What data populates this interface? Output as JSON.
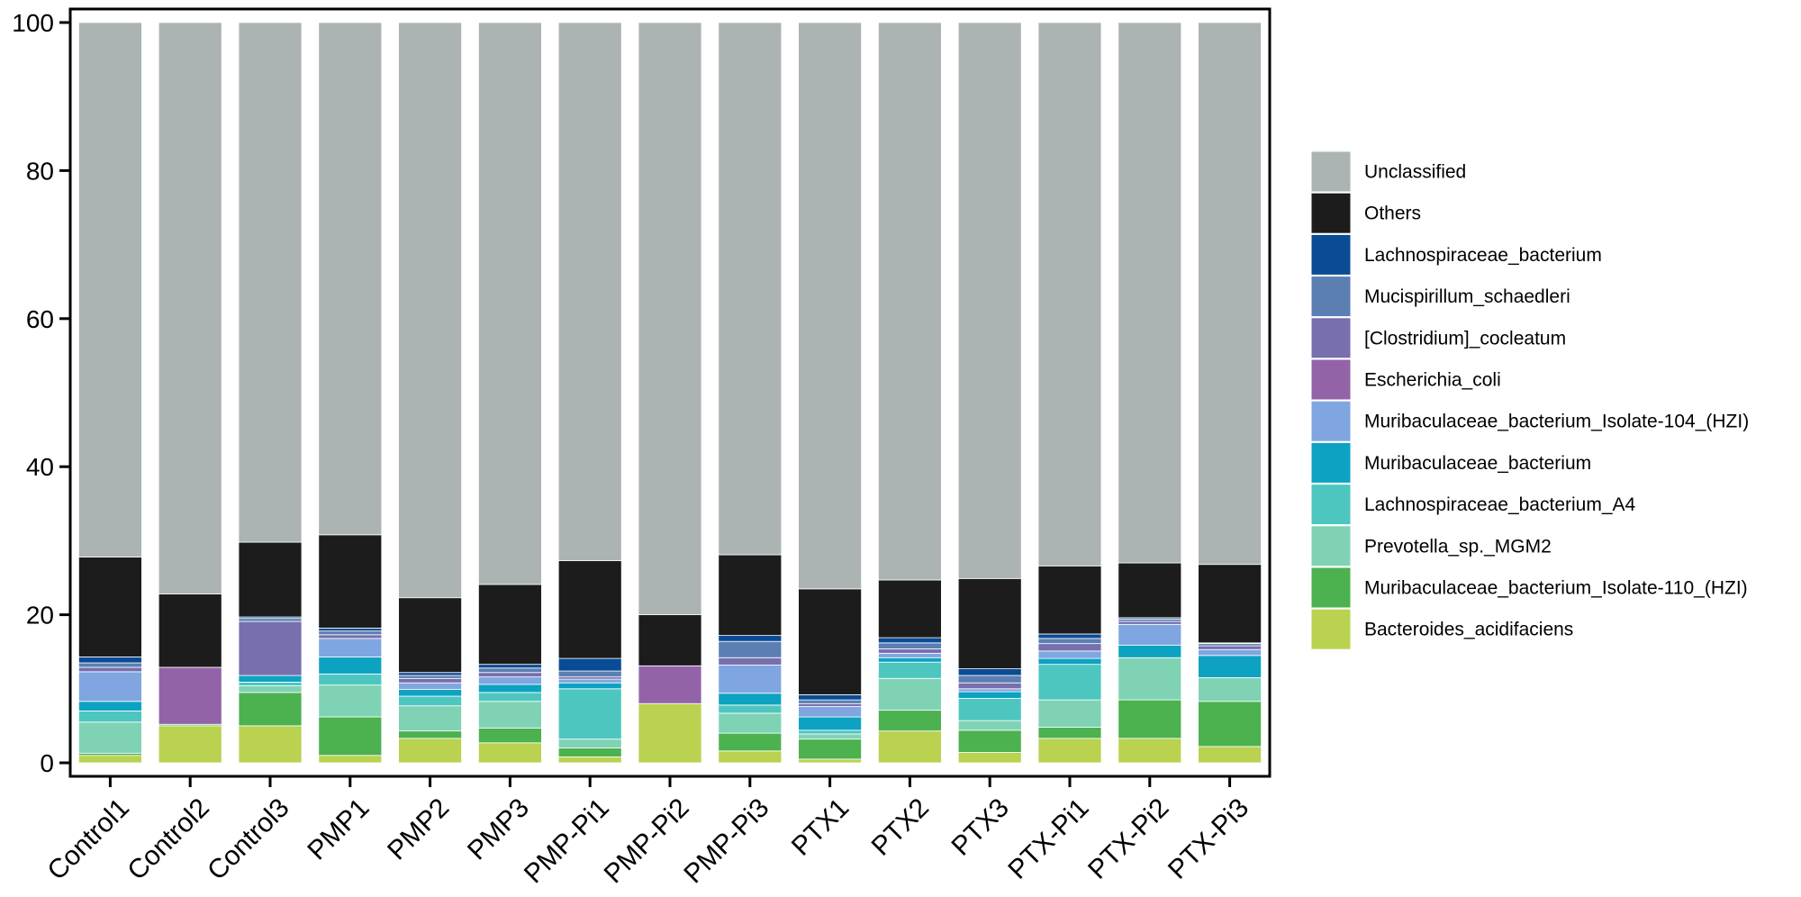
{
  "chart_data": {
    "type": "bar",
    "stacked": true,
    "title": "",
    "xlabel": "",
    "ylabel": "",
    "ylim": [
      0,
      100
    ],
    "yticks": [
      0,
      20,
      40,
      60,
      80,
      100
    ],
    "categories": [
      "Control1",
      "Control2",
      "Control3",
      "PMP1",
      "PMP2",
      "PMP3",
      "PMP-Pi1",
      "PMP-Pi2",
      "PMP-Pi3",
      "PTX1",
      "PTX2",
      "PTX3",
      "PTX-Pi1",
      "PTX-Pi2",
      "PTX-Pi3"
    ],
    "legend_position": "right",
    "legend_order": [
      "Unclassified",
      "Others",
      "Lachnospiraceae_bacterium",
      "Mucispirillum_schaedleri",
      "[Clostridium]_cocleatum",
      "Escherichia_coli",
      "Muribaculaceae_bacterium_Isolate-104_(HZI)",
      "Muribaculaceae_bacterium",
      "Lachnospiraceae_bacterium_A4",
      "Prevotella_sp._MGM2",
      "Muribaculaceae_bacterium_Isolate-110_(HZI)",
      "Bacteroides_acidifaciens"
    ],
    "series": [
      {
        "name": "Bacteroides_acidifaciens",
        "color": "#b9d24f",
        "values": [
          1.0,
          5.0,
          5.0,
          1.0,
          3.3,
          2.7,
          0.8,
          8.0,
          1.6,
          0.5,
          4.3,
          1.4,
          3.3,
          3.3,
          2.2
        ]
      },
      {
        "name": "Muribaculaceae_bacterium_Isolate-110_(HZI)",
        "color": "#4cb14f",
        "values": [
          0.3,
          0.2,
          4.5,
          5.2,
          1.0,
          2.0,
          1.2,
          0.0,
          2.4,
          2.7,
          2.8,
          3.0,
          1.5,
          5.2,
          6.1
        ]
      },
      {
        "name": "Prevotella_sp._MGM2",
        "color": "#7fd3b4",
        "values": [
          4.2,
          0.0,
          0.9,
          4.3,
          3.4,
          3.6,
          1.2,
          0.0,
          2.7,
          0.7,
          4.3,
          1.3,
          3.7,
          5.7,
          3.2
        ]
      },
      {
        "name": "Lachnospiraceae_bacterium_A4",
        "color": "#4ec6c0",
        "values": [
          1.5,
          0.0,
          0.5,
          1.5,
          1.3,
          1.2,
          6.8,
          0.0,
          1.1,
          0.5,
          2.2,
          3.0,
          4.8,
          0.0,
          0.0
        ]
      },
      {
        "name": "Muribaculaceae_bacterium",
        "color": "#0ea2c2",
        "values": [
          1.3,
          0.0,
          0.9,
          2.3,
          0.9,
          1.1,
          0.8,
          0.0,
          1.6,
          1.8,
          0.6,
          0.9,
          0.8,
          1.7,
          3.0
        ]
      },
      {
        "name": "Muribaculaceae_bacterium_Isolate-104_(HZI)",
        "color": "#7fa6e0",
        "values": [
          4.0,
          0.0,
          0.0,
          2.5,
          0.9,
          1.0,
          0.5,
          0.0,
          3.8,
          1.4,
          0.6,
          0.4,
          1.0,
          2.8,
          0.8
        ]
      },
      {
        "name": "Escherichia_coli",
        "color": "#9363a8",
        "values": [
          0.0,
          7.7,
          0.0,
          0.0,
          0.0,
          0.0,
          0.0,
          5.1,
          0.0,
          0.0,
          0.0,
          0.0,
          0.0,
          0.0,
          0.0
        ]
      },
      {
        "name": "[Clostridium]_cocleatum",
        "color": "#776fae",
        "values": [
          0.6,
          0.0,
          7.3,
          0.5,
          0.6,
          0.6,
          0.3,
          0.0,
          1.0,
          0.4,
          0.6,
          0.8,
          1.0,
          0.4,
          0.5
        ]
      },
      {
        "name": "Mucispirillum_schaedleri",
        "color": "#5b7fb2",
        "values": [
          0.6,
          0.0,
          0.4,
          0.5,
          0.4,
          0.6,
          0.8,
          0.0,
          2.2,
          0.5,
          0.8,
          1.0,
          0.7,
          0.3,
          0.3
        ]
      },
      {
        "name": "Lachnospiraceae_bacterium",
        "color": "#0a4b95",
        "values": [
          0.8,
          0.0,
          0.2,
          0.4,
          0.4,
          0.5,
          1.7,
          0.0,
          0.8,
          0.7,
          0.7,
          0.9,
          0.6,
          0.2,
          0.1
        ]
      },
      {
        "name": "Others",
        "color": "#1c1c1c",
        "values": [
          13.5,
          9.9,
          10.1,
          12.6,
          10.1,
          10.8,
          13.2,
          6.9,
          10.9,
          14.3,
          7.8,
          12.2,
          9.2,
          7.4,
          10.6
        ]
      },
      {
        "name": "Unclassified",
        "color": "#abb3b3",
        "values": [
          72.2,
          77.2,
          70.2,
          69.2,
          77.7,
          75.9,
          72.7,
          80.0,
          71.9,
          76.5,
          75.3,
          75.1,
          73.4,
          73.0,
          73.2
        ]
      }
    ]
  }
}
